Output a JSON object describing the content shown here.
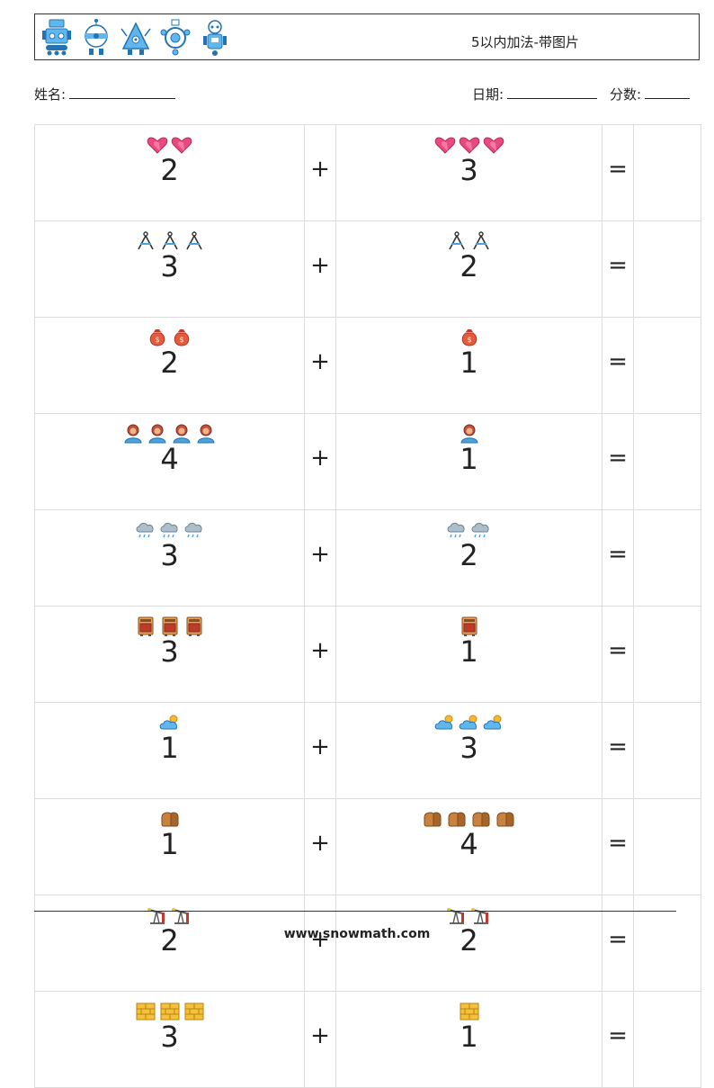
{
  "header": {
    "title": "5以内加法-带图片",
    "robots": [
      "robot-1-icon",
      "robot-2-icon",
      "robot-3-icon",
      "robot-4-icon",
      "robot-5-icon"
    ],
    "accent": "#2b8fd6"
  },
  "info": {
    "name_label": "姓名:",
    "date_label": "日期:",
    "score_label": "分数:"
  },
  "operators": {
    "plus": "+",
    "equals": "="
  },
  "rows": [
    {
      "a": 2,
      "b": 3,
      "icon": "heart"
    },
    {
      "a": 3,
      "b": 2,
      "icon": "compass"
    },
    {
      "a": 2,
      "b": 1,
      "icon": "moneybag"
    },
    {
      "a": 4,
      "b": 1,
      "icon": "person"
    },
    {
      "a": 3,
      "b": 2,
      "icon": "raincloud"
    },
    {
      "a": 3,
      "b": 1,
      "icon": "oven"
    },
    {
      "a": 1,
      "b": 3,
      "icon": "sunnycloud"
    },
    {
      "a": 1,
      "b": 4,
      "icon": "bread"
    },
    {
      "a": 2,
      "b": 2,
      "icon": "oilpump"
    },
    {
      "a": 3,
      "b": 1,
      "icon": "brick"
    }
  ],
  "footer": {
    "url": "www.snowmath.com"
  }
}
